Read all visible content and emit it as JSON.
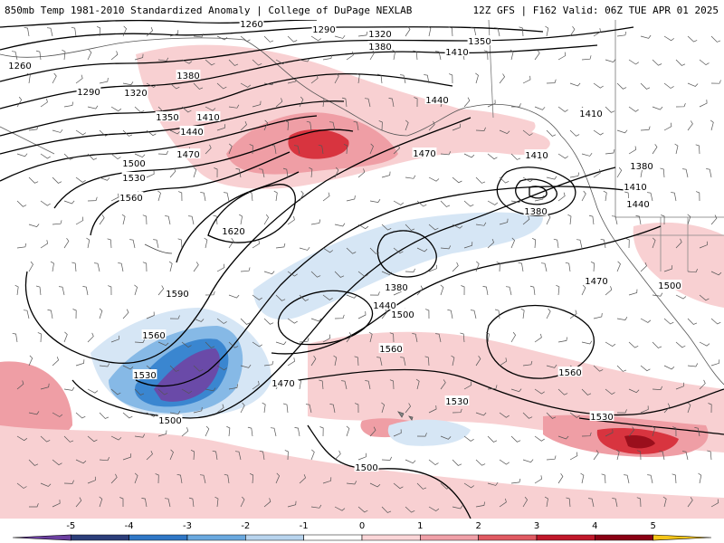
{
  "header": {
    "title": "850mb Temp 1981-2010 Standardized Anomaly | College of DuPage NEXLAB",
    "run_info": "12Z GFS | F162 Valid: 06Z TUE APR 01 2025"
  },
  "contour_labels": [
    "1260",
    "1290",
    "1320",
    "1380",
    "1350",
    "1410",
    "1260",
    "1290",
    "1320",
    "1380",
    "1350",
    "1410",
    "1440",
    "1470",
    "1500",
    "1530",
    "1560",
    "1620",
    "1590",
    "1560",
    "1530",
    "1500",
    "1470",
    "1440",
    "1410",
    "1380",
    "1380",
    "1440",
    "1500",
    "1560",
    "1470",
    "1410",
    "1380",
    "1410",
    "1440",
    "1470",
    "1530",
    "1500",
    "1560",
    "1530",
    "1500"
  ],
  "colorbar": {
    "tick_labels": [
      "-5",
      "-4",
      "-3",
      "-2",
      "-1",
      "0",
      "1",
      "2",
      "3",
      "4",
      "5"
    ],
    "colors": [
      "#6b3fa0",
      "#2c3e7a",
      "#2f77c6",
      "#6aa9df",
      "#b8d4ee",
      "#ffffff",
      "#fbd6d8",
      "#f0a0a8",
      "#e05a62",
      "#c0182a",
      "#8a0014",
      "#f5c518"
    ]
  },
  "map_colors": {
    "warm_light": "#f8d0d2",
    "warm_mid": "#ef9ea5",
    "warm_strong": "#d8343f",
    "warm_extreme": "#9a0f1c",
    "cold_light": "#d6e6f5",
    "cold_mid": "#86b9e6",
    "cold_strong": "#3a86d0",
    "cold_extreme": "#6a4aa8"
  }
}
